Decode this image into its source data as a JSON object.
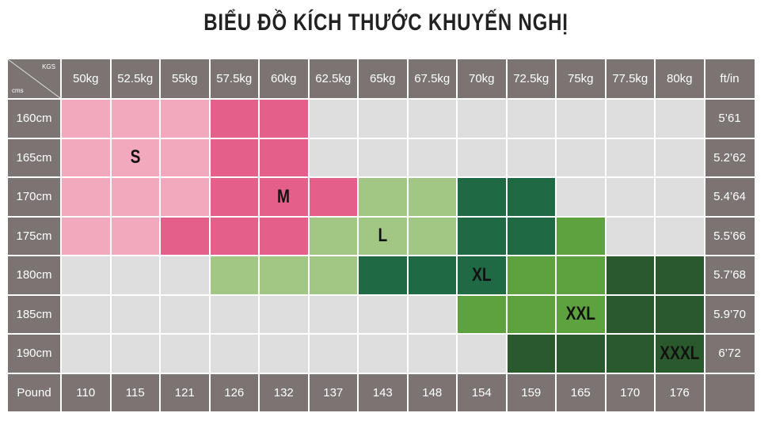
{
  "title": "BIỂU ĐỒ KÍCH THƯỚC KHUYẾN NGHỊ",
  "table": {
    "corner": {
      "top": "KGS",
      "bottom": "cms"
    },
    "columns": [
      "50kg",
      "52.5kg",
      "55kg",
      "57.5kg",
      "60kg",
      "62.5kg",
      "65kg",
      "67.5kg",
      "70kg",
      "72.5kg",
      "75kg",
      "77.5kg",
      "80kg"
    ],
    "unit_header": "ft/in",
    "rows": [
      {
        "height": "160cm",
        "feet": "5’61",
        "cells": [
          0,
          0,
          0,
          1,
          1,
          null,
          null,
          null,
          null,
          null,
          null,
          null,
          null
        ]
      },
      {
        "height": "165cm",
        "feet": "5.2’62",
        "cells": [
          0,
          0,
          0,
          1,
          1,
          null,
          null,
          null,
          null,
          null,
          null,
          null,
          null
        ]
      },
      {
        "height": "170cm",
        "feet": "5.4’64",
        "cells": [
          0,
          0,
          0,
          1,
          1,
          1,
          2,
          2,
          3,
          3,
          null,
          null,
          null
        ]
      },
      {
        "height": "175cm",
        "feet": "5.5’66",
        "cells": [
          0,
          0,
          1,
          1,
          1,
          2,
          2,
          2,
          3,
          3,
          4,
          null,
          null
        ]
      },
      {
        "height": "180cm",
        "feet": "5.7’68",
        "cells": [
          null,
          null,
          null,
          2,
          2,
          2,
          3,
          3,
          3,
          4,
          4,
          5,
          5
        ]
      },
      {
        "height": "185cm",
        "feet": "5.9’70",
        "cells": [
          null,
          null,
          null,
          null,
          null,
          null,
          null,
          null,
          4,
          4,
          4,
          5,
          5
        ]
      },
      {
        "height": "190cm",
        "feet": "6’72",
        "cells": [
          null,
          null,
          null,
          null,
          null,
          null,
          null,
          null,
          null,
          5,
          5,
          5,
          5
        ]
      }
    ],
    "footer": {
      "label": "Pound",
      "values": [
        110,
        115,
        121,
        126,
        132,
        137,
        143,
        148,
        154,
        159,
        165,
        170,
        176
      ]
    }
  },
  "sizes": [
    {
      "name": "S",
      "color": "#f2a8bd"
    },
    {
      "name": "M",
      "color": "#e4608a"
    },
    {
      "name": "L",
      "color": "#a2c785"
    },
    {
      "name": "XL",
      "color": "#1f6a44"
    },
    {
      "name": "XXL",
      "color": "#5ea240"
    },
    {
      "name": "XXXL",
      "color": "#2a592d"
    }
  ]
}
